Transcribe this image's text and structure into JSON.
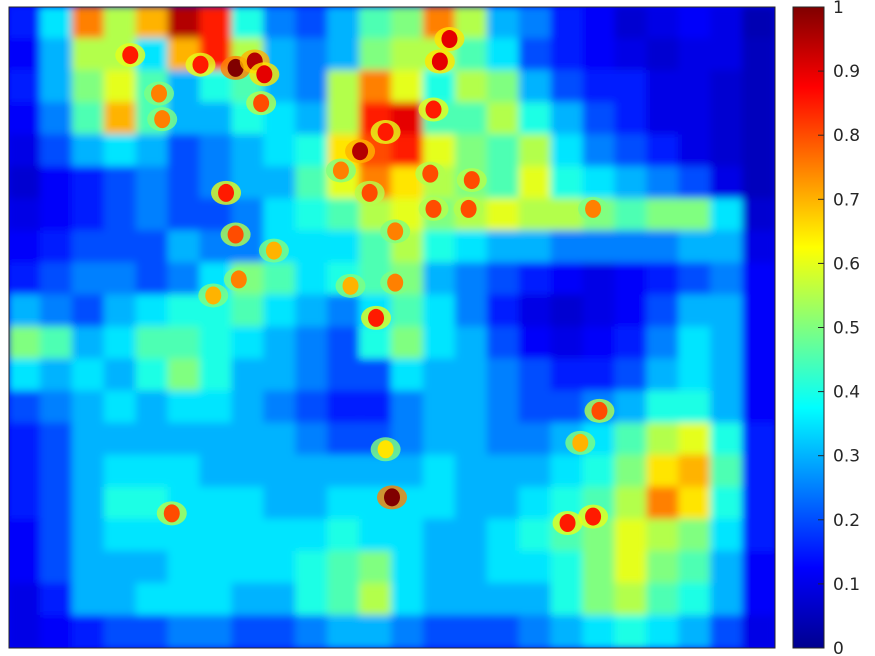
{
  "chart_data": {
    "type": "heatmap",
    "title": "",
    "xlabel": "",
    "ylabel": "",
    "colormap": "jet",
    "colorbar": {
      "range": [
        0,
        1
      ],
      "ticks": [
        0,
        0.1,
        0.2,
        0.3,
        0.4,
        0.5,
        0.6,
        0.7,
        0.8,
        0.9,
        1
      ],
      "tick_labels": [
        "0",
        "0.1",
        "0.2",
        "0.3",
        "0.4",
        "0.5",
        "0.6",
        "0.7",
        "0.8",
        "0.9",
        "1"
      ]
    },
    "axes_ticks_visible": false,
    "background_level": 0.12,
    "grid_size": [
      24,
      20
    ],
    "values": [
      [
        0.15,
        0.35,
        0.75,
        0.55,
        0.7,
        0.95,
        0.85,
        0.4,
        0.25,
        0.2,
        0.3,
        0.45,
        0.5,
        0.75,
        0.55,
        0.3,
        0.25,
        0.15,
        0.12,
        0.08,
        0.1,
        0.12,
        0.1,
        0.05
      ],
      [
        0.12,
        0.3,
        0.55,
        0.55,
        0.35,
        0.7,
        0.85,
        0.55,
        0.3,
        0.25,
        0.3,
        0.5,
        0.55,
        0.55,
        0.45,
        0.35,
        0.2,
        0.15,
        0.12,
        0.1,
        0.08,
        0.1,
        0.1,
        0.06
      ],
      [
        0.15,
        0.3,
        0.5,
        0.6,
        0.45,
        0.3,
        0.4,
        0.45,
        0.3,
        0.25,
        0.55,
        0.75,
        0.6,
        0.4,
        0.55,
        0.5,
        0.3,
        0.2,
        0.15,
        0.15,
        0.1,
        0.1,
        0.08,
        0.06
      ],
      [
        0.12,
        0.25,
        0.45,
        0.7,
        0.45,
        0.3,
        0.3,
        0.4,
        0.35,
        0.3,
        0.55,
        0.85,
        0.9,
        0.45,
        0.45,
        0.55,
        0.4,
        0.3,
        0.2,
        0.15,
        0.1,
        0.1,
        0.08,
        0.06
      ],
      [
        0.1,
        0.2,
        0.3,
        0.35,
        0.3,
        0.2,
        0.25,
        0.3,
        0.35,
        0.4,
        0.65,
        0.8,
        0.85,
        0.6,
        0.5,
        0.45,
        0.55,
        0.35,
        0.25,
        0.2,
        0.15,
        0.1,
        0.08,
        0.06
      ],
      [
        0.08,
        0.12,
        0.15,
        0.2,
        0.25,
        0.2,
        0.25,
        0.3,
        0.3,
        0.45,
        0.6,
        0.75,
        0.65,
        0.55,
        0.5,
        0.45,
        0.6,
        0.4,
        0.35,
        0.3,
        0.25,
        0.2,
        0.1,
        0.06
      ],
      [
        0.1,
        0.12,
        0.15,
        0.2,
        0.25,
        0.2,
        0.2,
        0.25,
        0.35,
        0.4,
        0.45,
        0.55,
        0.6,
        0.5,
        0.55,
        0.6,
        0.55,
        0.55,
        0.5,
        0.45,
        0.5,
        0.5,
        0.35,
        0.08
      ],
      [
        0.12,
        0.15,
        0.2,
        0.2,
        0.2,
        0.3,
        0.25,
        0.25,
        0.35,
        0.35,
        0.35,
        0.45,
        0.55,
        0.4,
        0.35,
        0.3,
        0.3,
        0.25,
        0.25,
        0.25,
        0.25,
        0.3,
        0.3,
        0.1
      ],
      [
        0.15,
        0.2,
        0.25,
        0.25,
        0.2,
        0.25,
        0.35,
        0.5,
        0.45,
        0.35,
        0.4,
        0.45,
        0.5,
        0.3,
        0.25,
        0.2,
        0.15,
        0.12,
        0.1,
        0.12,
        0.15,
        0.2,
        0.25,
        0.12
      ],
      [
        0.3,
        0.25,
        0.2,
        0.3,
        0.35,
        0.4,
        0.4,
        0.45,
        0.35,
        0.3,
        0.25,
        0.35,
        0.45,
        0.35,
        0.25,
        0.15,
        0.1,
        0.08,
        0.1,
        0.12,
        0.2,
        0.3,
        0.3,
        0.12
      ],
      [
        0.5,
        0.45,
        0.3,
        0.35,
        0.45,
        0.45,
        0.4,
        0.35,
        0.3,
        0.25,
        0.2,
        0.4,
        0.5,
        0.35,
        0.3,
        0.2,
        0.12,
        0.1,
        0.12,
        0.15,
        0.25,
        0.35,
        0.3,
        0.12
      ],
      [
        0.35,
        0.3,
        0.35,
        0.3,
        0.4,
        0.5,
        0.4,
        0.3,
        0.3,
        0.25,
        0.2,
        0.2,
        0.35,
        0.3,
        0.3,
        0.25,
        0.2,
        0.15,
        0.15,
        0.2,
        0.3,
        0.35,
        0.3,
        0.12
      ],
      [
        0.2,
        0.25,
        0.3,
        0.35,
        0.3,
        0.35,
        0.35,
        0.3,
        0.25,
        0.2,
        0.15,
        0.15,
        0.25,
        0.3,
        0.3,
        0.25,
        0.2,
        0.2,
        0.25,
        0.3,
        0.4,
        0.4,
        0.3,
        0.12
      ],
      [
        0.15,
        0.2,
        0.3,
        0.3,
        0.3,
        0.3,
        0.3,
        0.3,
        0.3,
        0.25,
        0.2,
        0.2,
        0.25,
        0.3,
        0.3,
        0.25,
        0.25,
        0.3,
        0.35,
        0.45,
        0.55,
        0.6,
        0.4,
        0.15
      ],
      [
        0.15,
        0.2,
        0.3,
        0.35,
        0.35,
        0.35,
        0.3,
        0.3,
        0.3,
        0.3,
        0.3,
        0.3,
        0.3,
        0.35,
        0.3,
        0.3,
        0.3,
        0.35,
        0.4,
        0.5,
        0.65,
        0.7,
        0.45,
        0.15
      ],
      [
        0.15,
        0.2,
        0.3,
        0.4,
        0.4,
        0.35,
        0.35,
        0.35,
        0.3,
        0.3,
        0.35,
        0.35,
        0.35,
        0.35,
        0.3,
        0.3,
        0.35,
        0.4,
        0.45,
        0.55,
        0.75,
        0.65,
        0.4,
        0.15
      ],
      [
        0.12,
        0.2,
        0.3,
        0.35,
        0.35,
        0.35,
        0.35,
        0.35,
        0.35,
        0.35,
        0.4,
        0.35,
        0.35,
        0.3,
        0.3,
        0.35,
        0.4,
        0.45,
        0.5,
        0.6,
        0.55,
        0.5,
        0.35,
        0.15
      ],
      [
        0.12,
        0.2,
        0.3,
        0.3,
        0.3,
        0.35,
        0.35,
        0.35,
        0.35,
        0.4,
        0.45,
        0.5,
        0.35,
        0.3,
        0.3,
        0.35,
        0.35,
        0.4,
        0.5,
        0.6,
        0.5,
        0.45,
        0.3,
        0.12
      ],
      [
        0.1,
        0.15,
        0.3,
        0.3,
        0.35,
        0.35,
        0.35,
        0.3,
        0.3,
        0.4,
        0.45,
        0.55,
        0.35,
        0.3,
        0.3,
        0.3,
        0.3,
        0.4,
        0.5,
        0.55,
        0.45,
        0.4,
        0.3,
        0.12
      ],
      [
        0.1,
        0.12,
        0.15,
        0.2,
        0.2,
        0.25,
        0.25,
        0.2,
        0.2,
        0.25,
        0.3,
        0.3,
        0.25,
        0.2,
        0.2,
        0.2,
        0.25,
        0.3,
        0.35,
        0.4,
        0.35,
        0.3,
        0.2,
        0.1
      ]
    ],
    "hotspots": [
      {
        "x": 10.5,
        "y": 4.0,
        "value": 0.95
      },
      {
        "x": 11.3,
        "y": 3.4,
        "value": 0.85
      },
      {
        "x": 10.8,
        "y": 5.3,
        "value": 0.8
      },
      {
        "x": 9.9,
        "y": 4.6,
        "value": 0.75
      },
      {
        "x": 12.7,
        "y": 4.7,
        "value": 0.8
      },
      {
        "x": 12.8,
        "y": 2.7,
        "value": 0.85
      },
      {
        "x": 14.0,
        "y": 4.9,
        "value": 0.8
      },
      {
        "x": 13.0,
        "y": 1.2,
        "value": 0.9
      },
      {
        "x": 13.3,
        "y": 0.5,
        "value": 0.9
      },
      {
        "x": 6.6,
        "y": 1.4,
        "value": 1.0
      },
      {
        "x": 7.2,
        "y": 1.2,
        "value": 0.95
      },
      {
        "x": 7.5,
        "y": 1.6,
        "value": 0.9
      },
      {
        "x": 5.5,
        "y": 1.3,
        "value": 0.85
      },
      {
        "x": 7.4,
        "y": 2.5,
        "value": 0.8
      },
      {
        "x": 3.3,
        "y": 1.0,
        "value": 0.85
      },
      {
        "x": 4.2,
        "y": 2.2,
        "value": 0.75
      },
      {
        "x": 4.3,
        "y": 3.0,
        "value": 0.75
      },
      {
        "x": 6.3,
        "y": 5.3,
        "value": 0.85
      },
      {
        "x": 11.6,
        "y": 6.5,
        "value": 0.75
      },
      {
        "x": 12.8,
        "y": 5.8,
        "value": 0.8
      },
      {
        "x": 13.9,
        "y": 5.8,
        "value": 0.8
      },
      {
        "x": 17.8,
        "y": 5.8,
        "value": 0.75
      },
      {
        "x": 11.0,
        "y": 9.2,
        "value": 0.85
      },
      {
        "x": 10.2,
        "y": 8.2,
        "value": 0.7
      },
      {
        "x": 11.6,
        "y": 8.1,
        "value": 0.75
      },
      {
        "x": 6.6,
        "y": 6.6,
        "value": 0.8
      },
      {
        "x": 6.7,
        "y": 8.0,
        "value": 0.75
      },
      {
        "x": 5.9,
        "y": 8.5,
        "value": 0.7
      },
      {
        "x": 7.8,
        "y": 7.1,
        "value": 0.7
      },
      {
        "x": 17.8,
        "y": 15.4,
        "value": 0.85
      },
      {
        "x": 17.0,
        "y": 15.6,
        "value": 0.85
      },
      {
        "x": 17.4,
        "y": 13.1,
        "value": 0.7
      },
      {
        "x": 18.0,
        "y": 12.1,
        "value": 0.8
      },
      {
        "x": 11.5,
        "y": 14.8,
        "value": 1.0
      },
      {
        "x": 4.6,
        "y": 15.3,
        "value": 0.8
      },
      {
        "x": 11.3,
        "y": 13.3,
        "value": 0.65
      }
    ]
  }
}
